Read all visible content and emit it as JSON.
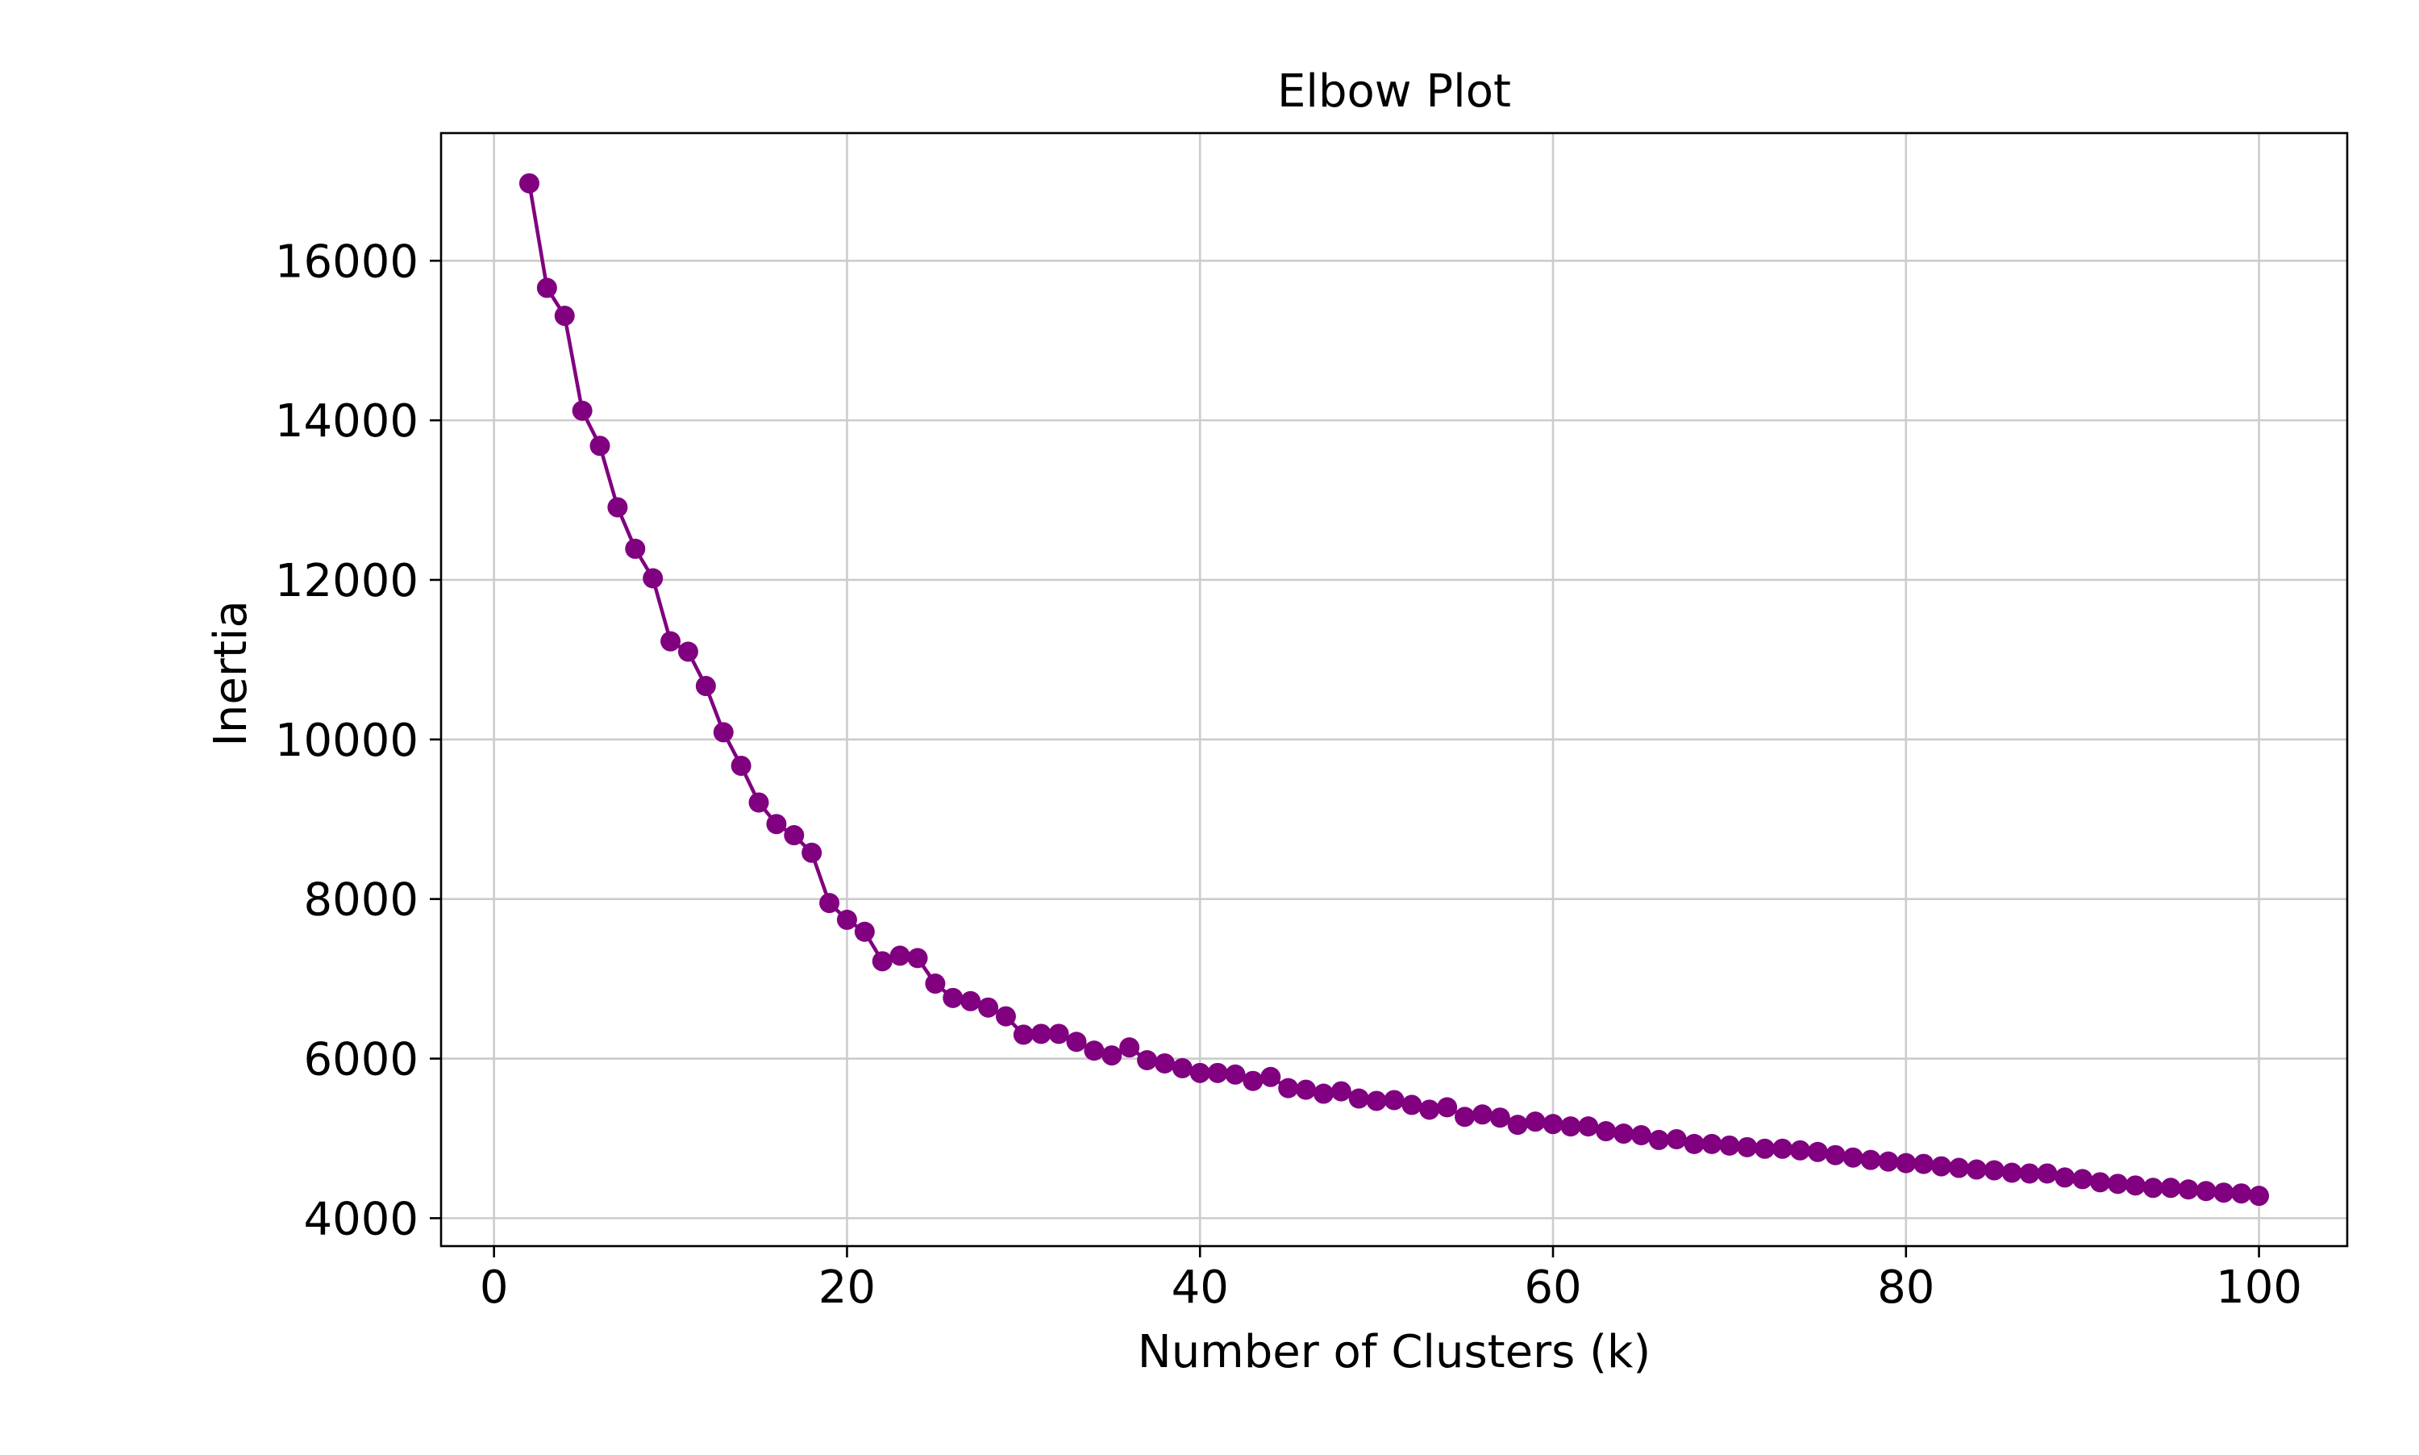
{
  "chart_data": {
    "type": "line",
    "title": "Elbow Plot",
    "xlabel": "Number of Clusters (k)",
    "ylabel": "Inertia",
    "xlim": [
      -3,
      105
    ],
    "ylim": [
      3650,
      17600
    ],
    "xticks": [
      0,
      20,
      40,
      60,
      80,
      100
    ],
    "yticks": [
      4000,
      6000,
      8000,
      10000,
      12000,
      14000,
      16000
    ],
    "grid": true,
    "legend": "none",
    "colors": {
      "series": "#800080",
      "grid": "#cccccc",
      "axis": "#000000"
    },
    "series": [
      {
        "marker": "circle",
        "x": [
          2,
          3,
          4,
          5,
          6,
          7,
          8,
          9,
          10,
          11,
          12,
          13,
          14,
          15,
          16,
          17,
          18,
          19,
          20,
          21,
          22,
          23,
          24,
          25,
          26,
          27,
          28,
          29,
          30,
          31,
          32,
          33,
          34,
          35,
          36,
          37,
          38,
          39,
          40,
          41,
          42,
          43,
          44,
          45,
          46,
          47,
          48,
          49,
          50,
          51,
          52,
          53,
          54,
          55,
          56,
          57,
          58,
          59,
          60,
          61,
          62,
          63,
          64,
          65,
          66,
          67,
          68,
          69,
          70,
          71,
          72,
          73,
          74,
          75,
          76,
          77,
          78,
          79,
          80,
          81,
          82,
          83,
          84,
          85,
          86,
          87,
          88,
          89,
          90,
          91,
          92,
          93,
          94,
          95,
          96,
          97,
          98,
          99,
          100
        ],
        "y": [
          16970,
          15660,
          15310,
          14120,
          13680,
          12910,
          12390,
          12020,
          11230,
          11100,
          10670,
          10090,
          9670,
          9210,
          8940,
          8800,
          8580,
          7950,
          7740,
          7590,
          7220,
          7290,
          7260,
          6940,
          6760,
          6720,
          6640,
          6530,
          6300,
          6310,
          6310,
          6210,
          6100,
          6040,
          6140,
          5980,
          5940,
          5880,
          5820,
          5820,
          5800,
          5720,
          5770,
          5630,
          5610,
          5560,
          5590,
          5500,
          5470,
          5480,
          5420,
          5360,
          5390,
          5270,
          5300,
          5260,
          5170,
          5210,
          5180,
          5150,
          5150,
          5090,
          5060,
          5040,
          4980,
          4990,
          4930,
          4930,
          4910,
          4890,
          4870,
          4870,
          4850,
          4830,
          4790,
          4760,
          4730,
          4710,
          4690,
          4680,
          4650,
          4630,
          4610,
          4600,
          4570,
          4560,
          4560,
          4510,
          4490,
          4450,
          4430,
          4410,
          4380,
          4380,
          4360,
          4340,
          4320,
          4310,
          4280
        ]
      }
    ]
  }
}
